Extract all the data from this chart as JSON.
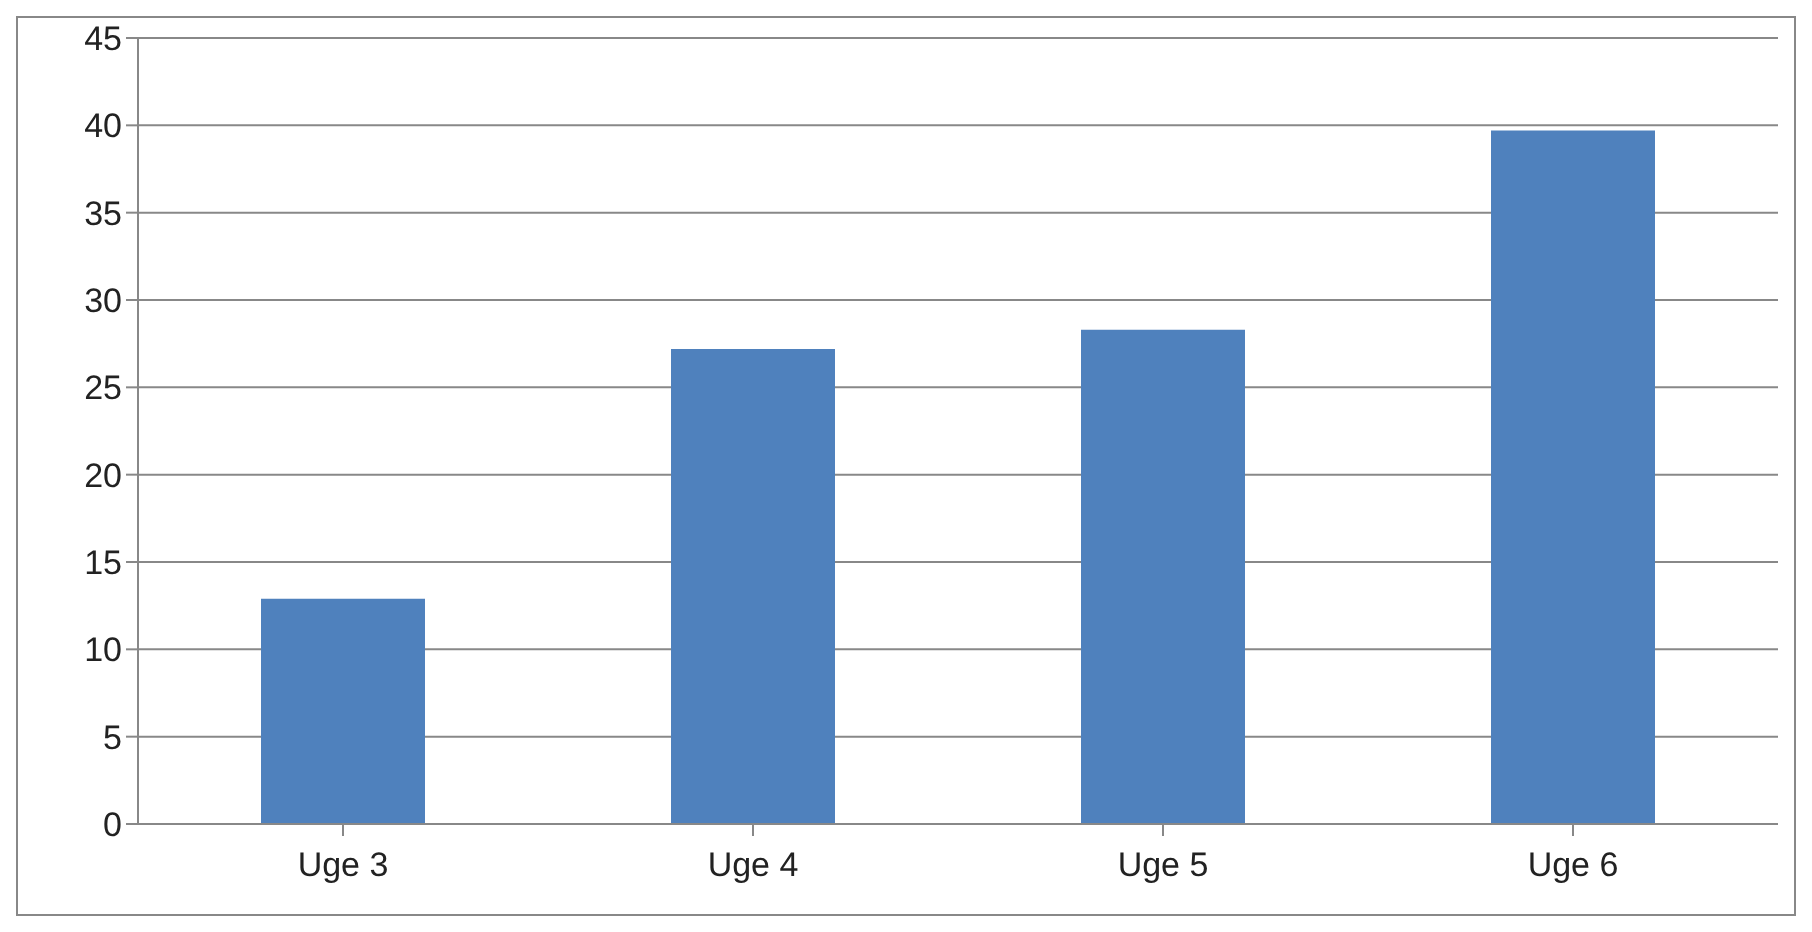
{
  "chart_data": {
    "type": "bar",
    "categories": [
      "Uge 3",
      "Uge 4",
      "Uge 5",
      "Uge 6"
    ],
    "values": [
      12.9,
      27.2,
      28.3,
      39.7
    ],
    "color": "#4f81bd",
    "ylim": [
      0,
      45
    ],
    "yticks": [
      0,
      5,
      10,
      15,
      20,
      25,
      30,
      35,
      40,
      45
    ],
    "grid": "y",
    "legend": false
  }
}
